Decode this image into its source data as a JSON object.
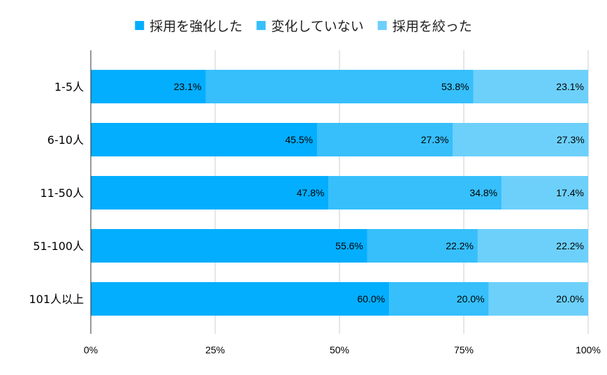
{
  "chart_data": {
    "type": "bar",
    "orientation": "horizontal",
    "stacked": "percent",
    "categories": [
      "1-5人",
      "6-10人",
      "11-50人",
      "51-100人",
      "101人以上"
    ],
    "series": [
      {
        "name": "採用を強化した",
        "values": [
          23.1,
          45.5,
          47.8,
          55.6,
          60.0
        ],
        "labels": [
          "23.1%",
          "45.5%",
          "47.8%",
          "55.6%",
          "60.0%"
        ],
        "color": "#03aeff"
      },
      {
        "name": "変化していない",
        "values": [
          53.8,
          27.3,
          34.8,
          22.2,
          20.0
        ],
        "labels": [
          "53.8%",
          "27.3%",
          "34.8%",
          "22.2%",
          "20.0%"
        ],
        "color": "#36bffb"
      },
      {
        "name": "採用を絞った",
        "values": [
          23.1,
          27.3,
          17.4,
          22.2,
          20.0
        ],
        "labels": [
          "23.1%",
          "27.3%",
          "17.4%",
          "22.2%",
          "20.0%"
        ],
        "color": "#6dd0fb"
      }
    ],
    "xlim": [
      0,
      100
    ],
    "xticks": [
      "0%",
      "25%",
      "50%",
      "75%",
      "100%"
    ],
    "grid": true,
    "legend_position": "top"
  }
}
